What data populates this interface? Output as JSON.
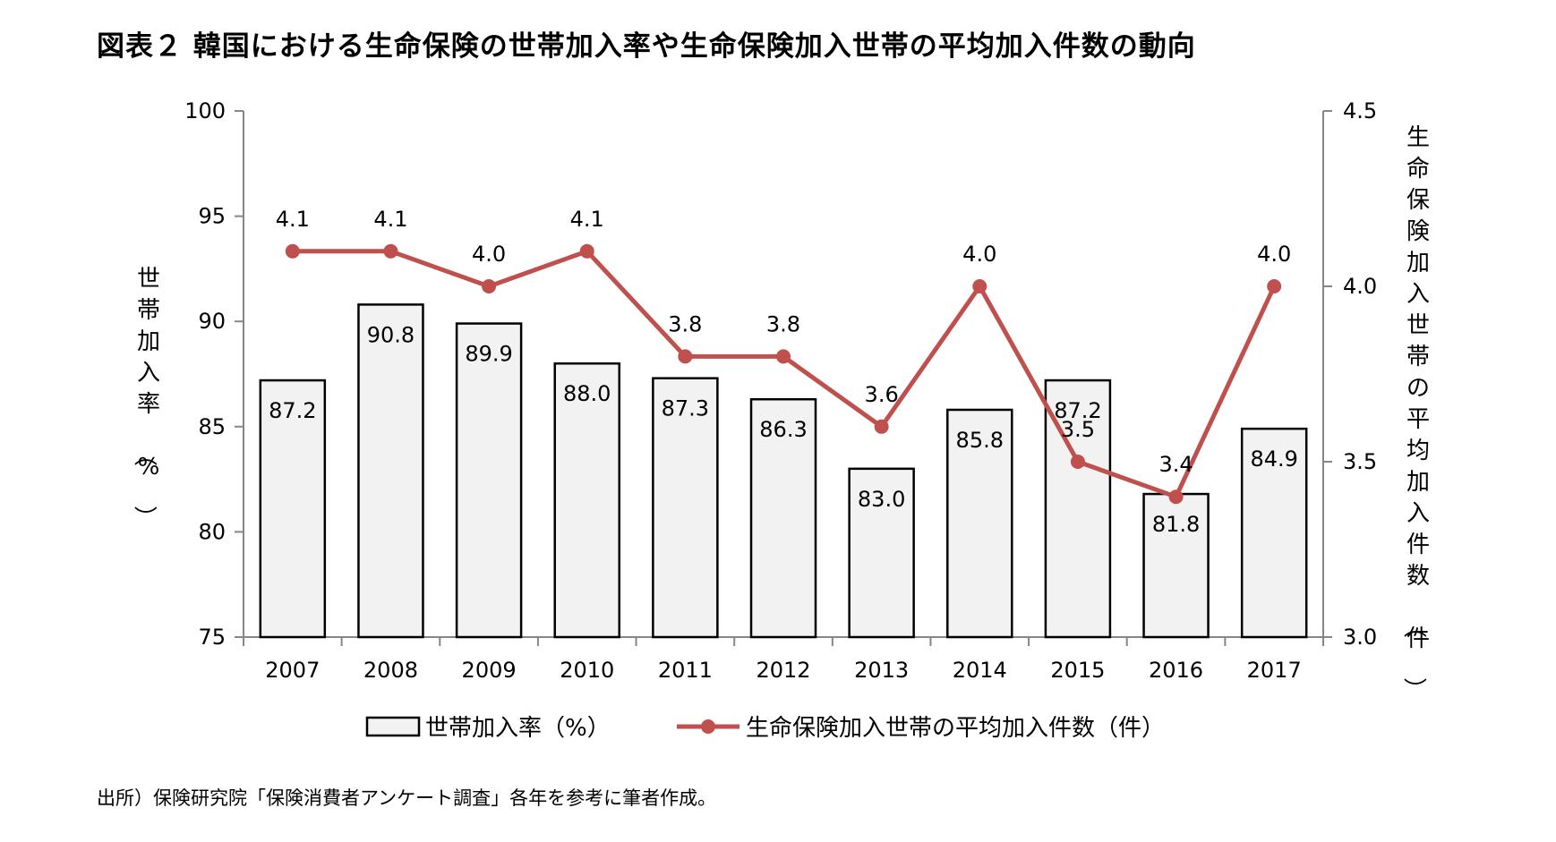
{
  "title": "図表２ 韓国における生命保険の世帯加入率や生命保険加入世帯の平均加入件数の動向",
  "source": "出所）保険研究院「保険消費者アンケート調査」各年を参考に筆者作成。",
  "chart_data": {
    "type": "bar",
    "categories": [
      "2007",
      "2008",
      "2009",
      "2010",
      "2011",
      "2012",
      "2013",
      "2014",
      "2015",
      "2016",
      "2017"
    ],
    "series": [
      {
        "name": "世帯加入率（%）",
        "type": "bar",
        "axis": "left",
        "values": [
          87.2,
          90.8,
          89.9,
          88.0,
          87.3,
          86.3,
          83.0,
          85.8,
          87.2,
          81.8,
          84.9
        ],
        "labels": [
          "87.2",
          "90.8",
          "89.9",
          "88.0",
          "87.3",
          "86.3",
          "83.0",
          "85.8",
          "87.2",
          "81.8",
          "84.9"
        ],
        "color": "#f2f2f2"
      },
      {
        "name": "生命保険加入世帯の平均加入件数（件）",
        "type": "line",
        "axis": "right",
        "values": [
          4.1,
          4.1,
          4.0,
          4.1,
          3.8,
          3.8,
          3.6,
          4.0,
          3.5,
          3.4,
          4.0
        ],
        "labels": [
          "4.1",
          "4.1",
          "4.0",
          "4.1",
          "3.8",
          "3.8",
          "3.6",
          "4.0",
          "3.5",
          "3.4",
          "4.0"
        ],
        "color": "#c0504d"
      }
    ],
    "ylabel": "世帯加入率（%）",
    "y2label": "生命保険加入世帯の平均加入件数（件）",
    "ylim": [
      75,
      100
    ],
    "y2lim": [
      3.0,
      4.5
    ],
    "yticks": [
      "75",
      "80",
      "85",
      "90",
      "95",
      "100"
    ],
    "y2ticks": [
      "3.0",
      "3.5",
      "4.0",
      "4.5"
    ],
    "grid": false,
    "legend": "bottom"
  }
}
